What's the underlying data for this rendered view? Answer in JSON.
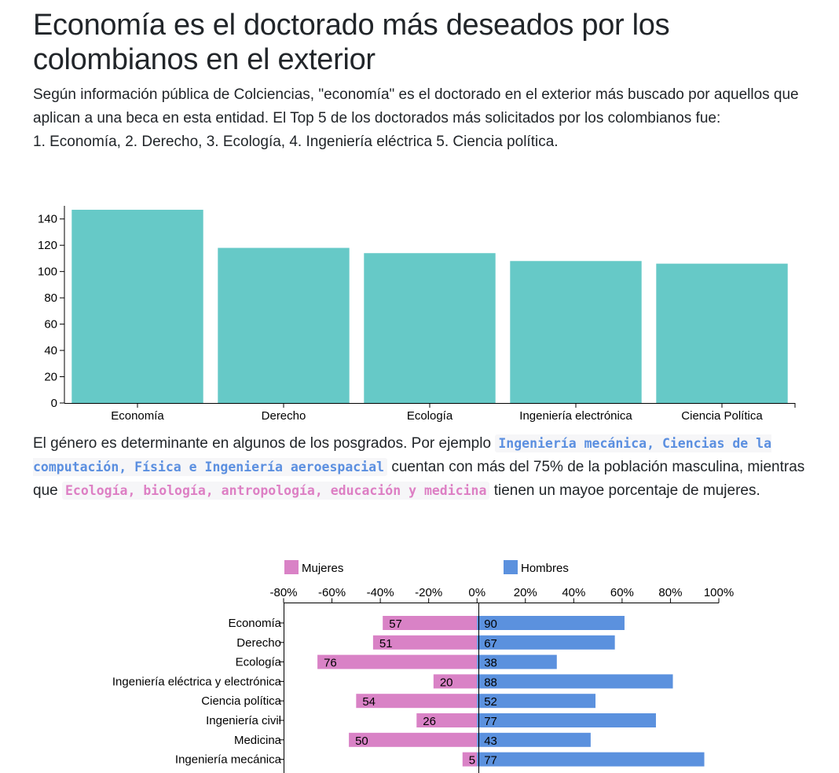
{
  "header": {
    "title": "Economía es el doctorado más deseados por los colombianos en el exterior"
  },
  "intro": {
    "line1": "Según información pública de Colciencias, \"economía\" es el doctorado en el exterior más buscado por aquellos que aplican a una beca en esta entidad. El Top 5 de los doctorados más solicitados por los colombianos fue:",
    "line2": "1. Economía, 2. Derecho, 3. Ecología, 4. Ingeniería eléctrica 5. Ciencia política."
  },
  "gender_text": {
    "prefix": "El género es determinante en algunos de los posgrados. Por ejemplo",
    "code_male": "Ingeniería mecánica, Ciencias de la computación, Física e Ingeniería aeroespacial",
    "middle": "cuentan con más del 75% de la población masculina, mientras que",
    "code_female": "Ecología, biología, antropología, educación y medicina",
    "suffix": "tienen un mayoe porcentaje de mujeres."
  },
  "colors": {
    "bar": "#66c9c7",
    "mujeres": "#d982c6",
    "hombres": "#5b91de"
  },
  "chart_data": [
    {
      "type": "bar",
      "categories": [
        "Economía",
        "Derecho",
        "Ecología",
        "Ingeniería electrónica",
        "Ciencia Política"
      ],
      "values": [
        147,
        118,
        114,
        108,
        106
      ],
      "ylim": [
        0,
        150
      ],
      "yticks": [
        0,
        20,
        40,
        60,
        80,
        100,
        120,
        140
      ],
      "title": "",
      "xlabel": "",
      "ylabel": ""
    },
    {
      "type": "bar",
      "orientation": "horizontal-diverging",
      "legend": [
        "Mujeres",
        "Hombres"
      ],
      "legend_position": "top",
      "categories": [
        "Economía",
        "Derecho",
        "Ecología",
        "Ingeniería eléctrica y electrónica",
        "Ciencia política",
        "Ingeniería civil",
        "Medicina",
        "Ingeniería mecánica"
      ],
      "series": [
        {
          "name": "Mujeres",
          "values": [
            57,
            51,
            76,
            20,
            54,
            26,
            50,
            5
          ],
          "extent_percent": [
            -39,
            -43,
            -66,
            -18,
            -50,
            -25,
            -53,
            -6
          ]
        },
        {
          "name": "Hombres",
          "values": [
            90,
            67,
            38,
            88,
            52,
            77,
            43,
            77
          ],
          "extent_percent": [
            61,
            57,
            33,
            81,
            49,
            74,
            47,
            94
          ]
        }
      ],
      "xlim": [
        -80,
        100
      ],
      "xticks": [
        "-80%",
        "-60%",
        "-40%",
        "-20%",
        "0%",
        "20%",
        "40%",
        "60%",
        "80%",
        "100%"
      ]
    }
  ]
}
